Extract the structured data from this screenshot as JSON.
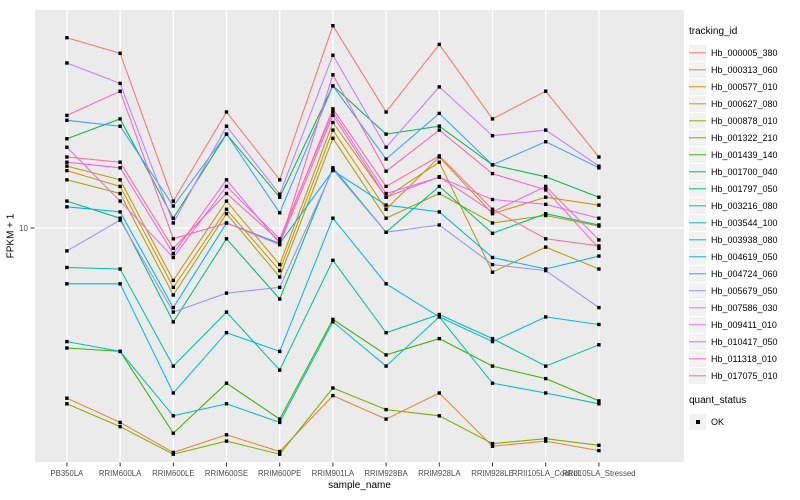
{
  "chart_data": {
    "type": "line",
    "xlabel": "sample_name",
    "ylabel": "FPKM + 1",
    "y_scale": "log10",
    "y_ticks": [
      10
    ],
    "ylim": [
      1.05,
      85
    ],
    "grid": "on",
    "panel_bg": "#EBEBEB",
    "grid_color": "#FFFFFF",
    "point_marker": "filled-square",
    "point_color": "#000000",
    "categories": [
      "PB350LA",
      "RRIM600LA",
      "RRIM600LE",
      "RRIM600SE",
      "RRIM600PE",
      "RRIM901LA",
      "RRIM928BA",
      "RRIM928LA",
      "RRIM928LE",
      "RRII105LA_Control",
      "RRII105LA_Stressed"
    ],
    "series": [
      {
        "name": "Hb_000005_380",
        "color": "#F8766D",
        "values": [
          64,
          55,
          13,
          31,
          16,
          72,
          31,
          60,
          29,
          38,
          20
        ]
      },
      {
        "name": "Hb_000313_060",
        "color": "#EA8331",
        "values": [
          1.9,
          1.5,
          1.12,
          1.33,
          1.13,
          1.95,
          1.55,
          2.0,
          1.19,
          1.25,
          1.14
        ]
      },
      {
        "name": "Hb_000577_010",
        "color": "#D89000",
        "values": [
          17.5,
          15,
          5.6,
          12,
          6.6,
          26,
          12,
          20,
          11.5,
          13.5,
          12.5
        ]
      },
      {
        "name": "Hb_000627_080",
        "color": "#C09B00",
        "values": [
          18.3,
          16,
          6.0,
          13,
          7.0,
          28,
          13.5,
          19,
          6.5,
          8.3,
          6.7
        ]
      },
      {
        "name": "Hb_000878_010",
        "color": "#A3A500",
        "values": [
          16,
          14,
          5.2,
          11.5,
          6.2,
          24,
          11,
          14,
          10.5,
          11.3,
          10.2
        ]
      },
      {
        "name": "Hb_001322_210",
        "color": "#7CAE00",
        "values": [
          1.8,
          1.44,
          1.1,
          1.25,
          1.1,
          2.1,
          1.7,
          1.6,
          1.22,
          1.28,
          1.2
        ]
      },
      {
        "name": "Hb_001439_140",
        "color": "#39B600",
        "values": [
          3.1,
          3.0,
          1.35,
          2.2,
          1.55,
          4.1,
          2.9,
          3.4,
          2.6,
          2.3,
          1.85
        ]
      },
      {
        "name": "Hb_001700_040",
        "color": "#00BB4E",
        "values": [
          23.9,
          29,
          11,
          25,
          13.5,
          40,
          25,
          27,
          18.5,
          16.5,
          13.5
        ]
      },
      {
        "name": "Hb_001797_050",
        "color": "#00BF7D",
        "values": [
          13,
          11,
          4.0,
          9.0,
          5.0,
          18,
          9.6,
          15,
          9.5,
          11.5,
          10.3
        ]
      },
      {
        "name": "Hb_003216_080",
        "color": "#00C1A3",
        "values": [
          6.8,
          6.7,
          2.6,
          4.4,
          2.5,
          7.3,
          3.6,
          4.3,
          3.4,
          2.6,
          3.2
        ]
      },
      {
        "name": "Hb_003544_100",
        "color": "#00BFC4",
        "values": [
          3.3,
          3.0,
          1.6,
          1.8,
          1.5,
          4.0,
          2.6,
          4.2,
          2.2,
          2.0,
          1.8
        ]
      },
      {
        "name": "Hb_003938_080",
        "color": "#00BAE0",
        "values": [
          5.8,
          5.8,
          2.0,
          3.6,
          3.0,
          11,
          5.8,
          4.2,
          3.3,
          4.2,
          3.9
        ]
      },
      {
        "name": "Hb_004619_050",
        "color": "#00B0F6",
        "values": [
          12.3,
          11.7,
          4.6,
          10.5,
          8.6,
          17.5,
          12.5,
          11.7,
          7.5,
          6.7,
          7.6
        ]
      },
      {
        "name": "Hb_004724_060",
        "color": "#35A2FF",
        "values": [
          28.6,
          27,
          12.4,
          25,
          11.6,
          40,
          19.6,
          30.6,
          18.5,
          23.2,
          18
        ]
      },
      {
        "name": "Hb_005679_050",
        "color": "#9590FF",
        "values": [
          8.0,
          10.8,
          4.4,
          5.3,
          5.6,
          17.7,
          9.6,
          10.3,
          7.0,
          6.6,
          4.6
        ]
      },
      {
        "name": "Hb_007586_030",
        "color": "#C77CFF",
        "values": [
          50,
          41,
          10.5,
          27,
          13.9,
          54,
          22,
          39.6,
          24.6,
          26,
          18.3
        ]
      },
      {
        "name": "Hb_009411_010",
        "color": "#E76BF3",
        "values": [
          22,
          13,
          7.5,
          15,
          9.0,
          31,
          14,
          16.4,
          13.2,
          12.6,
          11
        ]
      },
      {
        "name": "Hb_010417_050",
        "color": "#FA62DB",
        "values": [
          19,
          18,
          7.8,
          16,
          8.6,
          30,
          13.5,
          16.5,
          11.7,
          15,
          8.9
        ]
      },
      {
        "name": "Hb_011318_010",
        "color": "#FF62BC",
        "values": [
          30,
          38,
          9.0,
          10.5,
          8.5,
          44.6,
          17.4,
          26,
          17,
          14.5,
          8.2
        ]
      },
      {
        "name": "Hb_017075_010",
        "color": "#FF6A98",
        "values": [
          20,
          19,
          8.2,
          14,
          8.8,
          32,
          15,
          20.2,
          12,
          9.0,
          8.4
        ]
      }
    ],
    "legend": {
      "position": "right",
      "title": "tracking_id",
      "secondary_title": "quant_status",
      "secondary_items": [
        {
          "label": "OK",
          "marker": "black-square"
        }
      ]
    }
  }
}
